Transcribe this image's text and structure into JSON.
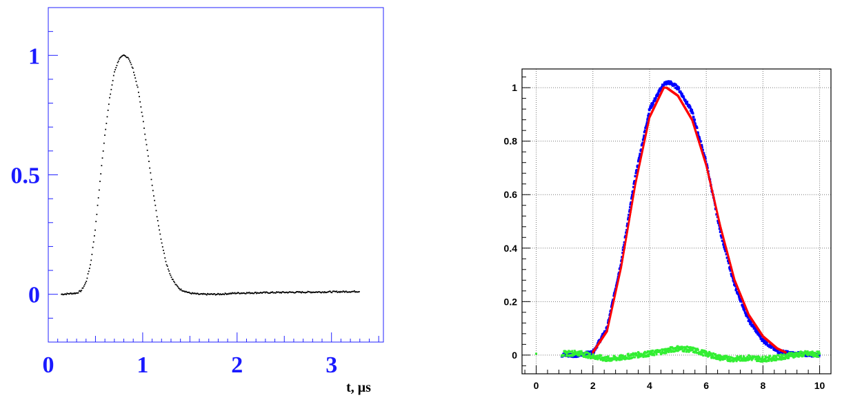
{
  "chart_data": [
    {
      "type": "scatter",
      "xlabel": "t, μs",
      "ylabel": "",
      "xlim": [
        0,
        3.55
      ],
      "ylim": [
        -0.2,
        1.2
      ],
      "x_ticks": [
        {
          "value": 0,
          "label": "0"
        },
        {
          "value": 1,
          "label": "1"
        },
        {
          "value": 2,
          "label": "2"
        },
        {
          "value": 3,
          "label": "3"
        }
      ],
      "y_ticks": [
        {
          "value": 0,
          "label": "0"
        },
        {
          "value": 0.5,
          "label": "0.5"
        },
        {
          "value": 1,
          "label": "1"
        }
      ],
      "grid": false,
      "series": [
        {
          "color": "#000000",
          "x": [
            0.14,
            0.3,
            0.35,
            0.4,
            0.45,
            0.5,
            0.55,
            0.6,
            0.65,
            0.7,
            0.75,
            0.8,
            0.85,
            0.9,
            0.95,
            1.0,
            1.05,
            1.1,
            1.15,
            1.2,
            1.25,
            1.3,
            1.35,
            1.4,
            1.5,
            1.6,
            1.8,
            2.0,
            2.5,
            3.0,
            3.3
          ],
          "y": [
            0.0,
            0.005,
            0.015,
            0.05,
            0.13,
            0.28,
            0.48,
            0.67,
            0.82,
            0.93,
            0.985,
            1.0,
            0.99,
            0.94,
            0.86,
            0.74,
            0.6,
            0.46,
            0.33,
            0.22,
            0.13,
            0.075,
            0.04,
            0.02,
            0.005,
            0.0,
            0.0,
            0.005,
            0.008,
            0.01,
            0.012
          ]
        }
      ]
    },
    {
      "type": "scatter",
      "xlabel": "",
      "ylabel": "",
      "xlim": [
        -0.5,
        10.4
      ],
      "ylim": [
        -0.07,
        1.07
      ],
      "x_ticks": [
        {
          "value": 0,
          "label": "0"
        },
        {
          "value": 2,
          "label": "2"
        },
        {
          "value": 4,
          "label": "4"
        },
        {
          "value": 6,
          "label": "6"
        },
        {
          "value": 8,
          "label": "8"
        },
        {
          "value": 10,
          "label": "10"
        }
      ],
      "y_ticks": [
        {
          "value": 0,
          "label": "0"
        },
        {
          "value": 0.2,
          "label": "0.2"
        },
        {
          "value": 0.4,
          "label": "0.4"
        },
        {
          "value": 0.6,
          "label": "0.6"
        },
        {
          "value": 0.8,
          "label": "0.8"
        },
        {
          "value": 1,
          "label": "1"
        }
      ],
      "grid": true,
      "series": [
        {
          "color": "#0000ff",
          "x": [
            0.9,
            1.5,
            2.0,
            2.5,
            3.0,
            3.5,
            4.0,
            4.5,
            4.7,
            5.0,
            5.5,
            6.0,
            6.5,
            7.0,
            7.5,
            8.0,
            8.5,
            9.0,
            9.5,
            10.0
          ],
          "y": [
            0.0,
            0.0,
            0.01,
            0.1,
            0.35,
            0.67,
            0.92,
            1.015,
            1.02,
            1.0,
            0.91,
            0.72,
            0.46,
            0.26,
            0.13,
            0.055,
            0.015,
            0.005,
            0.003,
            0.0
          ]
        },
        {
          "color": "#ff0000",
          "x": [
            2.0,
            2.5,
            3.0,
            3.5,
            4.0,
            4.5,
            4.6,
            5.0,
            5.5,
            6.0,
            6.5,
            7.0,
            7.5,
            8.0,
            8.5,
            8.8
          ],
          "y": [
            0.01,
            0.09,
            0.33,
            0.64,
            0.89,
            1.0,
            1.0,
            0.97,
            0.88,
            0.71,
            0.48,
            0.28,
            0.15,
            0.07,
            0.025,
            0.01
          ]
        },
        {
          "color": "#33ee33",
          "x": [
            0.9,
            1.5,
            2.0,
            2.5,
            3.0,
            3.5,
            4.0,
            4.5,
            5.0,
            5.5,
            6.0,
            6.5,
            7.0,
            7.5,
            8.0,
            8.5,
            9.0,
            9.5,
            10.0
          ],
          "y": [
            0.005,
            0.008,
            -0.005,
            -0.015,
            -0.01,
            0.0,
            0.005,
            0.015,
            0.025,
            0.02,
            0.005,
            -0.01,
            -0.015,
            -0.01,
            -0.015,
            -0.01,
            0.0,
            0.005,
            0.003
          ]
        }
      ]
    }
  ]
}
